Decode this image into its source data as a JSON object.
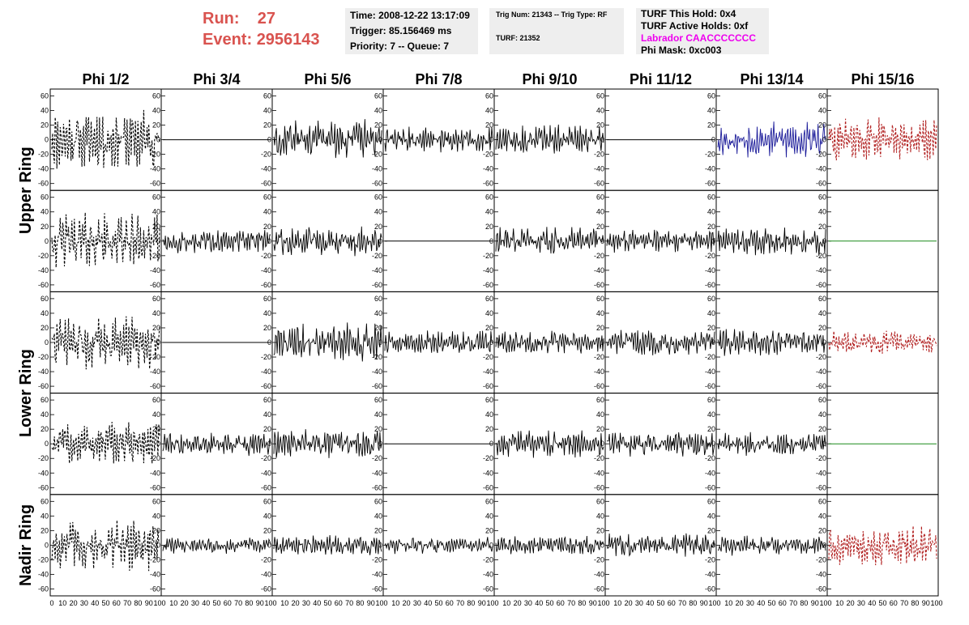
{
  "header": {
    "run_label": "Run:",
    "run_value": "27",
    "event_label": "Event:",
    "event_value": "2956143",
    "time": "Time: 2008-12-22 13:17:09",
    "trigger": "Trigger: 85.156469 ms",
    "priority": "Priority: 7 -- Queue: 7",
    "trig_num": "Trig Num: 21343 -- Trig Type: RF",
    "turf": "TURF: 21352",
    "turf_hold": "TURF This Hold: 0x4",
    "turf_active": "TURF Active Holds: 0xf",
    "labrador": "Labrador CAACCCCCCC",
    "phi_mask": "Phi Mask: 0xc003"
  },
  "chart_data": {
    "type": "line",
    "columns": [
      "Phi 1/2",
      "Phi 3/4",
      "Phi 5/6",
      "Phi 7/8",
      "Phi 9/10",
      "Phi 11/12",
      "Phi 13/14",
      "Phi 15/16"
    ],
    "row_groups": [
      "Upper Ring",
      "Lower Ring",
      "Nadir Ring"
    ],
    "rows": 5,
    "xlim": [
      0,
      100
    ],
    "ylim": [
      -65,
      65
    ],
    "y_ticks": [
      -60,
      -40,
      -20,
      0,
      20,
      40,
      60
    ],
    "x_ticks": [
      0,
      10,
      20,
      30,
      40,
      50,
      60,
      70,
      80,
      90,
      100
    ],
    "x_tick_text": "0 10 20 30 40 50 60 70 80 90 100",
    "x_tick_text_mid": "10 20 30 40 50 60 70 80 90 100",
    "colors": {
      "black": "#000000",
      "blue": "#1a1a99",
      "red": "#b22222",
      "green": "#1a8a1a"
    },
    "cells": [
      [
        {
          "s": "dash",
          "c": "black",
          "a": 38
        },
        {
          "s": "flat",
          "c": "black",
          "a": 0
        },
        {
          "s": "solid",
          "c": "black",
          "a": 24
        },
        {
          "s": "solid",
          "c": "black",
          "a": 17
        },
        {
          "s": "solid",
          "c": "black",
          "a": 18
        },
        {
          "s": "flat",
          "c": "black",
          "a": 0
        },
        {
          "s": "solid",
          "c": "blue",
          "a": 22
        },
        {
          "s": "dash",
          "c": "red",
          "a": 26
        }
      ],
      [
        {
          "s": "dash",
          "c": "black",
          "a": 33
        },
        {
          "s": "solid",
          "c": "black",
          "a": 14
        },
        {
          "s": "solid",
          "c": "black",
          "a": 18
        },
        {
          "s": "flat",
          "c": "black",
          "a": 0
        },
        {
          "s": "solid",
          "c": "black",
          "a": 17
        },
        {
          "s": "solid",
          "c": "black",
          "a": 14
        },
        {
          "s": "solid",
          "c": "black",
          "a": 18
        },
        {
          "s": "flat",
          "c": "green",
          "a": 0
        }
      ],
      [
        {
          "s": "dash",
          "c": "black",
          "a": 32
        },
        {
          "s": "flat",
          "c": "black",
          "a": 0
        },
        {
          "s": "solid",
          "c": "black",
          "a": 24
        },
        {
          "s": "solid",
          "c": "black",
          "a": 14
        },
        {
          "s": "solid",
          "c": "black",
          "a": 14
        },
        {
          "s": "solid",
          "c": "black",
          "a": 15
        },
        {
          "s": "solid",
          "c": "black",
          "a": 16
        },
        {
          "s": "dash",
          "c": "red",
          "a": 14
        }
      ],
      [
        {
          "s": "dash",
          "c": "black",
          "a": 26
        },
        {
          "s": "solid",
          "c": "black",
          "a": 14
        },
        {
          "s": "solid",
          "c": "black",
          "a": 17
        },
        {
          "s": "flat",
          "c": "black",
          "a": 0
        },
        {
          "s": "solid",
          "c": "black",
          "a": 17
        },
        {
          "s": "solid",
          "c": "black",
          "a": 15
        },
        {
          "s": "solid",
          "c": "black",
          "a": 14
        },
        {
          "s": "flat",
          "c": "green",
          "a": 0
        }
      ],
      [
        {
          "s": "dash",
          "c": "black",
          "a": 30
        },
        {
          "s": "solid",
          "c": "black",
          "a": 10
        },
        {
          "s": "solid",
          "c": "black",
          "a": 12
        },
        {
          "s": "solid",
          "c": "black",
          "a": 10
        },
        {
          "s": "solid",
          "c": "black",
          "a": 11
        },
        {
          "s": "solid",
          "c": "black",
          "a": 15
        },
        {
          "s": "solid",
          "c": "black",
          "a": 12
        },
        {
          "s": "dash",
          "c": "red",
          "a": 24
        }
      ]
    ]
  }
}
